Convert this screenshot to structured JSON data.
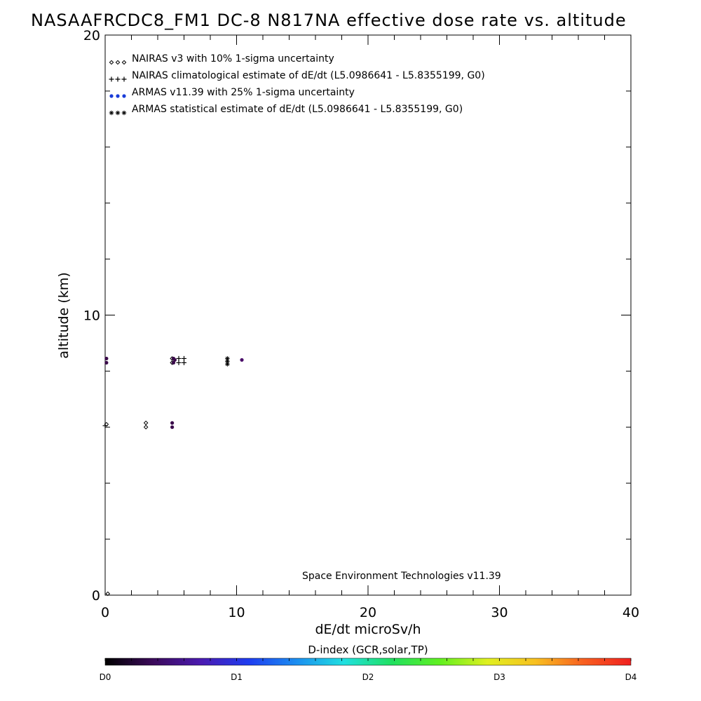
{
  "chart_data": {
    "type": "scatter",
    "title": "NASAAFRCDC8_FM1 DC-8   N817NA effective dose rate vs. altitude",
    "xlabel": "dE/dt microSv/h",
    "ylabel": "altitude (km)",
    "xlim": [
      0,
      40
    ],
    "ylim": [
      0,
      20
    ],
    "x_ticks": [
      "0",
      "10",
      "20",
      "30",
      "40"
    ],
    "y_ticks": [
      "0",
      "10",
      "20"
    ],
    "grid": false,
    "legend_position": "top-left",
    "credit": "Space Environment Technologies v11.39",
    "series": [
      {
        "name": "NAIRAS v3 with 10% 1-sigma uncertainty",
        "marker": "diamond",
        "color": "#000000",
        "points": [
          [
            0.1,
            6.1
          ],
          [
            3.1,
            6.15
          ],
          [
            3.1,
            6.0
          ],
          [
            5.1,
            8.45
          ],
          [
            5.1,
            8.3
          ]
        ]
      },
      {
        "name": "NAIRAS climatological estimate of dE/dt (L5.0986641 - L5.8355199, G0)",
        "marker": "plus",
        "color": "#000000",
        "points": [
          [
            0.0,
            6.05
          ],
          [
            5.6,
            8.45
          ],
          [
            5.6,
            8.3
          ],
          [
            6.0,
            8.45
          ],
          [
            6.0,
            8.3
          ]
        ]
      },
      {
        "name": "ARMAS v11.39 with 25% 1-sigma uncertainty",
        "marker": "dot",
        "color": "#1a3cd8",
        "points": [
          [
            0.1,
            8.45
          ],
          [
            0.1,
            8.3
          ],
          [
            5.2,
            8.45
          ],
          [
            5.2,
            8.3
          ],
          [
            5.3,
            8.4
          ],
          [
            5.1,
            6.15
          ],
          [
            5.1,
            6.0
          ],
          [
            10.4,
            8.4
          ]
        ]
      },
      {
        "name": "ARMAS statistical estimate of dE/dt (L5.0986641 - L5.8355199, G0)",
        "marker": "asterisk",
        "color": "#000000",
        "points": [
          [
            9.3,
            8.45
          ],
          [
            9.3,
            8.35
          ],
          [
            9.3,
            8.25
          ]
        ]
      }
    ],
    "point_colors": {
      "d0_d1": "#3a0a4a",
      "d1": "#4b0f6a"
    },
    "colorbar": {
      "title": "D-index (GCR,solar,TP)",
      "labels": [
        "D0",
        "D1",
        "D2",
        "D3",
        "D4"
      ],
      "label_values": [
        0,
        1,
        2,
        3,
        4
      ],
      "scale_max": 4,
      "gradient": [
        "#000000",
        "#3b0a5a",
        "#4b1ab0",
        "#1e3cf0",
        "#1c8ef0",
        "#20e0e0",
        "#20e060",
        "#60f020",
        "#e0f020",
        "#f8c020",
        "#f86020",
        "#f02020"
      ]
    }
  }
}
